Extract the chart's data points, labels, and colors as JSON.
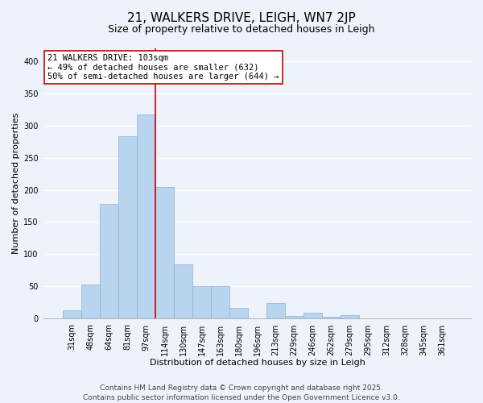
{
  "title": "21, WALKERS DRIVE, LEIGH, WN7 2JP",
  "subtitle": "Size of property relative to detached houses in Leigh",
  "xlabel": "Distribution of detached houses by size in Leigh",
  "ylabel": "Number of detached properties",
  "categories": [
    "31sqm",
    "48sqm",
    "64sqm",
    "81sqm",
    "97sqm",
    "114sqm",
    "130sqm",
    "147sqm",
    "163sqm",
    "180sqm",
    "196sqm",
    "213sqm",
    "229sqm",
    "246sqm",
    "262sqm",
    "279sqm",
    "295sqm",
    "312sqm",
    "328sqm",
    "345sqm",
    "361sqm"
  ],
  "values": [
    13,
    53,
    178,
    283,
    317,
    204,
    84,
    51,
    51,
    16,
    0,
    24,
    4,
    9,
    3,
    5,
    0,
    0,
    0,
    0,
    0
  ],
  "bar_color": "#b8d4ee",
  "bar_edge_color": "#8ab4d4",
  "red_line_x": 4.5,
  "annotation_line1": "21 WALKERS DRIVE: 103sqm",
  "annotation_line2": "← 49% of detached houses are smaller (632)",
  "annotation_line3": "50% of semi-detached houses are larger (644) →",
  "box_facecolor": "#ffffff",
  "box_edgecolor": "#cc0000",
  "red_line_color": "#cc0000",
  "ylim": [
    0,
    420
  ],
  "yticks": [
    0,
    50,
    100,
    150,
    200,
    250,
    300,
    350,
    400
  ],
  "footer1": "Contains HM Land Registry data © Crown copyright and database right 2025.",
  "footer2": "Contains public sector information licensed under the Open Government Licence v3.0.",
  "background_color": "#eef2fb",
  "grid_color": "#ffffff",
  "title_fontsize": 11,
  "subtitle_fontsize": 9,
  "axis_label_fontsize": 8,
  "tick_fontsize": 7,
  "annotation_fontsize": 7.5,
  "footer_fontsize": 6.5
}
